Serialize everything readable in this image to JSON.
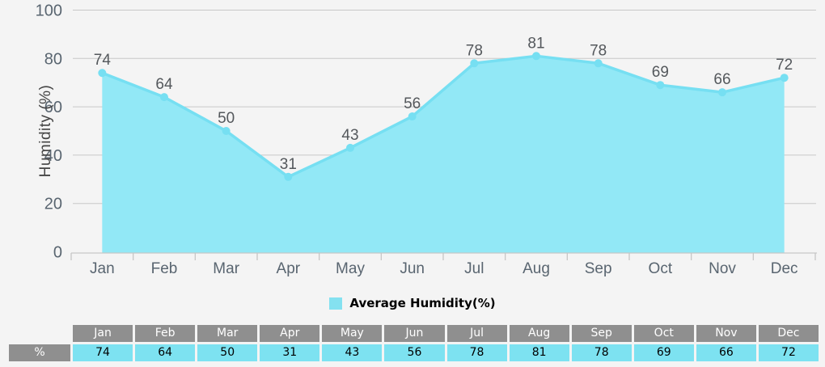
{
  "chart_data": {
    "type": "area",
    "title": "",
    "series_name": "Average Humidity(%)",
    "categories": [
      "Jan",
      "Feb",
      "Mar",
      "Apr",
      "May",
      "Jun",
      "Jul",
      "Aug",
      "Sep",
      "Oct",
      "Nov",
      "Dec"
    ],
    "values": [
      74,
      64,
      50,
      31,
      43,
      56,
      78,
      81,
      78,
      69,
      66,
      72
    ],
    "xlabel": "",
    "ylabel": "Humidity (%)",
    "ylim": [
      0,
      100
    ],
    "yticks": [
      0,
      20,
      40,
      60,
      80,
      100
    ],
    "grid": true,
    "legend_position": "bottom",
    "colors": {
      "area_fill": "#92e8f6",
      "line": "#76dff2",
      "marker": "#76dff2",
      "label_text": "#54585c",
      "axis_text": "#596570",
      "axis_title_text": "#444444",
      "grid_line": "#c8c8c8",
      "axis_line": "#c6c6c6"
    }
  },
  "legend": {
    "label": "Average Humidity(%)",
    "swatch_color": "#84e1f0"
  },
  "table": {
    "corner_label": "",
    "row_label": "%",
    "header_bg": "#8f8f8f",
    "value_bg": "#7de2f1"
  }
}
